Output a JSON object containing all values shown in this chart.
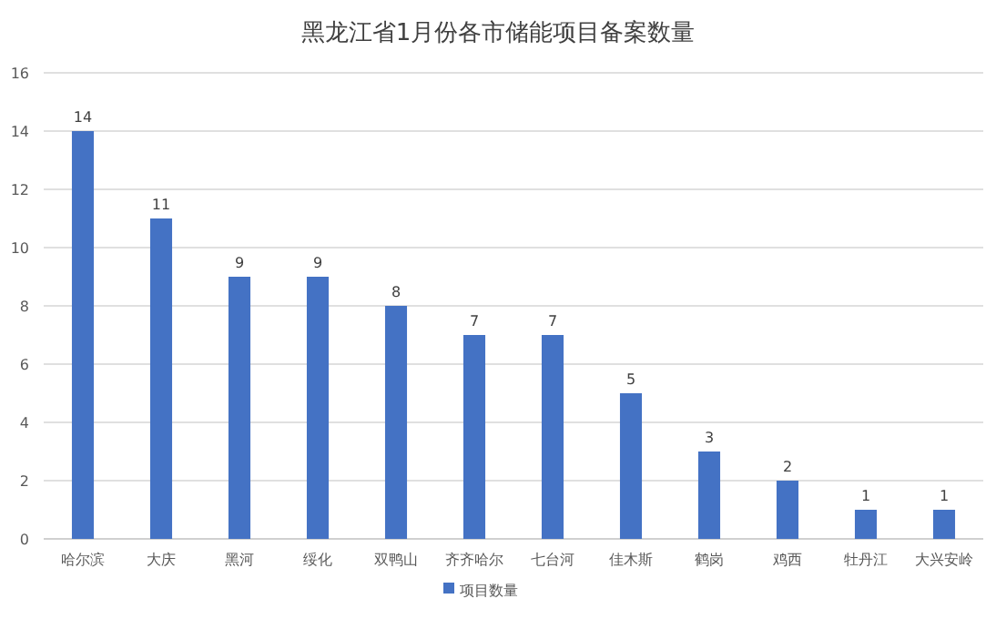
{
  "chart_data": {
    "type": "bar",
    "title": "黑龙江省1月份各市储能项目备案数量",
    "categories": [
      "哈尔滨",
      "大庆",
      "黑河",
      "绥化",
      "双鸭山",
      "齐齐哈尔",
      "七台河",
      "佳木斯",
      "鹤岗",
      "鸡西",
      "牡丹江",
      "大兴安岭"
    ],
    "series": [
      {
        "name": "项目数量",
        "color": "#4472c4",
        "values": [
          14,
          11,
          9,
          9,
          8,
          7,
          7,
          5,
          3,
          2,
          1,
          1
        ]
      }
    ],
    "ylim": [
      0,
      16
    ],
    "yticks": [
      0,
      2,
      4,
      6,
      8,
      10,
      12,
      14,
      16
    ],
    "grid": "y",
    "legend": "bottom",
    "data_labels": true
  }
}
